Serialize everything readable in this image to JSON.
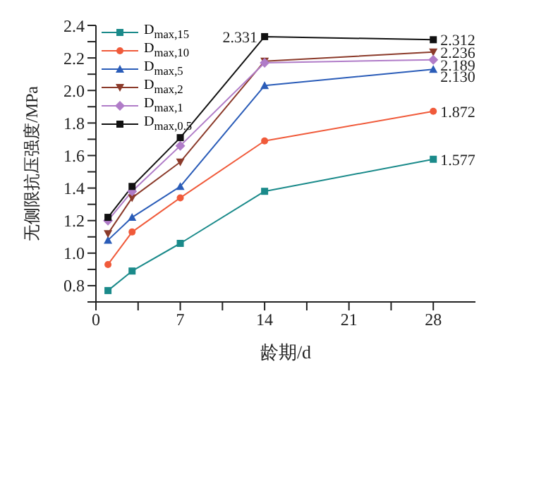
{
  "chart_data": {
    "type": "line",
    "xlabel": "龄期/d",
    "ylabel": "无侧限抗压强度/MPa",
    "x": [
      1,
      3,
      7,
      14,
      28
    ],
    "xlim": [
      0,
      31.5
    ],
    "xticks": [
      0,
      {
        "value": 3.5,
        "label": null
      },
      7,
      {
        "value": 10.5,
        "label": null
      },
      14,
      {
        "value": 17.5,
        "label": null
      },
      21,
      {
        "value": 24.5,
        "label": null
      },
      28
    ],
    "ylim": [
      0.7,
      2.4
    ],
    "yticks": [
      {
        "value": 0.7,
        "label": null
      },
      0.8,
      {
        "value": 0.9,
        "label": null
      },
      {
        "value": 1.0,
        "label": "1.0"
      },
      {
        "value": 1.1,
        "label": null
      },
      1.2,
      {
        "value": 1.3,
        "label": null
      },
      1.4,
      {
        "value": 1.5,
        "label": null
      },
      1.6,
      {
        "value": 1.7,
        "label": null
      },
      1.8,
      {
        "value": 1.9,
        "label": null
      },
      {
        "value": 2.0,
        "label": "2.0"
      },
      {
        "value": 2.1,
        "label": null
      },
      2.2,
      {
        "value": 2.3,
        "label": null
      },
      2.4
    ],
    "grid": false,
    "legend": "top left",
    "series": [
      {
        "name": "D$_{max,15}$",
        "color": "#1a8a8a",
        "marker": "square",
        "values": [
          0.77,
          0.89,
          1.06,
          1.38,
          1.577
        ],
        "value_labels": [
          null,
          null,
          null,
          null,
          "1.577"
        ]
      },
      {
        "name": "D$_{max,10}$",
        "color": "#f05a3a",
        "marker": "circle",
        "values": [
          0.93,
          1.13,
          1.34,
          1.69,
          1.872
        ],
        "value_labels": [
          null,
          null,
          null,
          null,
          "1.872"
        ]
      },
      {
        "name": "D$_{max,5}$",
        "color": "#2a5cb8",
        "marker": "triangle",
        "values": [
          1.08,
          1.22,
          1.41,
          2.03,
          2.13
        ],
        "value_labels": [
          null,
          null,
          null,
          null,
          "2.130"
        ]
      },
      {
        "name": "D$_{max,2}$",
        "color": "#8b3a2a",
        "marker": "triangle-down",
        "values": [
          1.12,
          1.34,
          1.56,
          2.18,
          2.236
        ],
        "value_labels": [
          null,
          null,
          null,
          null,
          "2.236"
        ]
      },
      {
        "name": "D$_{max,1}$",
        "color": "#b07cc8",
        "marker": "diamond",
        "values": [
          1.2,
          1.38,
          1.66,
          2.17,
          2.189
        ],
        "value_labels": [
          null,
          null,
          null,
          null,
          "2.189"
        ]
      },
      {
        "name": "D$_{max,0.5}$",
        "color": "#111111",
        "marker": "square",
        "values": [
          1.22,
          1.41,
          1.71,
          2.331,
          2.312
        ],
        "value_labels": [
          null,
          null,
          null,
          "2.331",
          "2.312"
        ]
      }
    ]
  }
}
